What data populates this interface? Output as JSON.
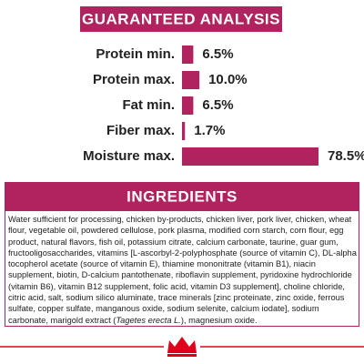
{
  "chart_data": {
    "type": "bar",
    "orientation": "horizontal",
    "title": "GUARANTEED ANALYSIS",
    "categories": [
      "Protein min.",
      "Protein max.",
      "Fat min.",
      "Fiber max.",
      "Moisture max."
    ],
    "values": [
      6.5,
      10.0,
      6.5,
      1.7,
      78.5
    ],
    "value_labels": [
      "6.5%",
      "10.0%",
      "6.5%",
      "1.7%",
      "78.5%"
    ],
    "color": "#b0235f"
  },
  "ingredients": {
    "title": "INGREDIENTS",
    "text": [
      "Water sufficient for processing, chicken by-products, chicken liver, pork liver, chicken, wheat flour, vegetable oil, powdered cellulose, pork plasma, modified corn starch, corn flour, egg product, natural flavors, fish oil, potassium citrate, calcium carbonate, taurine, guar gum, fructooligosaccharides, vitamins [L-ascorbyl-2-polyphosphate (source of vitamin C), DL-alpha tocopherol acetate (source of vitamin E), thiamine mononitrate (vitamin B1), niacin supplement, biotin, D-calcium pantothenate, riboflavin supplement, pyridoxine hydrochloride (vitamin B6), vitamin B12 supplement, folic acid, vitamin D3 supplement], choline chloride, citric acid, salt, sodium silico aluminate, trace minerals [zinc proteinate, zinc oxide, ferrous sulfate, copper sulfate, manganous oxide, sodium selenite, calcium iodate], sodium carbonate, marigold extract (",
      "Tagetes erecta L.",
      "), magnesium oxide."
    ]
  }
}
